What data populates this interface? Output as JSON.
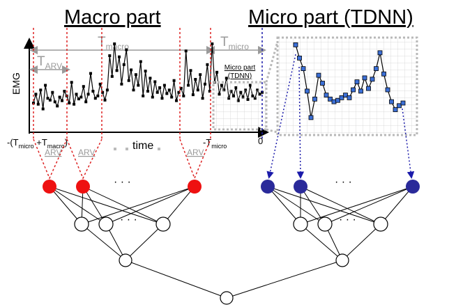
{
  "titles": {
    "macro": "Macro part",
    "micro": "Micro part (TDNN)"
  },
  "axes": {
    "y_label": "EMG",
    "x_label": "time",
    "x_left_tick": {
      "prefix": "-(T",
      "sub1": "micro",
      "mid": " +T",
      "sub2": "macro",
      "suffix": ")"
    },
    "x_right_tick": {
      "prefix": "-T",
      "sub": "micro"
    },
    "x_zero": "0"
  },
  "spans": {
    "t_macro": {
      "main": "T",
      "sub": "macro"
    },
    "t_micro": {
      "main": "T",
      "sub": "micro"
    },
    "t_arv": {
      "main": "T",
      "sub": "ARV"
    }
  },
  "inset_label": {
    "line1": "Micro part",
    "line2": "(TDNN)"
  },
  "arv_labels": [
    "ARV",
    "ARV",
    "ARV"
  ],
  "ellipsis": "· · ·",
  "colors": {
    "macro_node": "#ee1111",
    "micro_node": "#2a2a9a",
    "micro_marker": "#3b6fd6",
    "guide_red": "#dd2222",
    "guide_blue": "#1a1aaa",
    "grey": "#9a9a9a"
  },
  "signals": {
    "macro_emg": [
      40,
      55,
      38,
      62,
      30,
      70,
      48,
      45,
      58,
      42,
      35,
      50,
      44,
      60,
      52,
      40,
      75,
      38,
      55,
      47,
      50,
      68,
      42,
      55,
      90,
      60,
      48,
      52,
      72,
      58,
      45,
      62,
      120,
      85,
      140,
      95,
      118,
      72,
      105,
      130,
      78,
      96,
      62,
      88,
      70,
      110,
      52,
      94,
      60,
      82,
      50,
      76,
      58,
      66,
      48,
      70,
      56,
      62,
      50,
      78,
      44,
      58,
      65,
      52,
      128,
      70,
      95,
      54,
      80,
      62,
      88,
      48,
      72,
      105,
      60,
      140,
      75,
      92,
      55,
      70,
      62,
      82,
      48,
      60,
      52,
      66,
      44,
      58,
      50,
      62,
      46,
      70,
      52,
      48,
      62,
      55,
      58
    ],
    "micro_tdnn": [
      128,
      108,
      92,
      58,
      18,
      46,
      82,
      70,
      52,
      46,
      42,
      44,
      48,
      52,
      48,
      60,
      72,
      58,
      78,
      62,
      76,
      92,
      116,
      84,
      60,
      42,
      30,
      36,
      40
    ]
  }
}
